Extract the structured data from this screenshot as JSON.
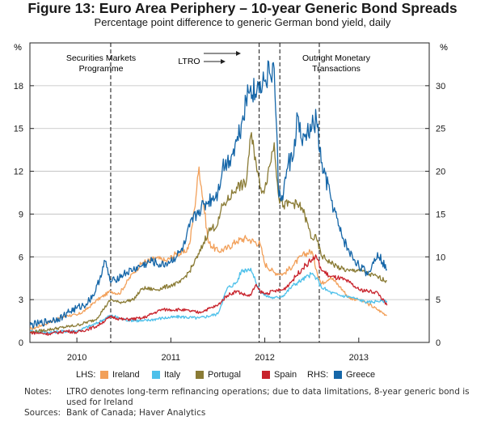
{
  "title": "Figure 13: Euro Area Periphery – 10-year Generic Bond Spreads",
  "subtitle": "Percentage point difference to generic German bond yield, daily",
  "notes_label": "Notes:",
  "notes_text": "LTRO denotes long-term refinancing operations; due to data limitations, 8-year generic bond is used for Ireland",
  "sources_label": "Sources:",
  "sources_text": "Bank of Canada; Haver Analytics",
  "chart_data": {
    "type": "line",
    "x_unit": "year (decimal)",
    "xlim": [
      2009.5,
      2013.75
    ],
    "xticks": [
      2010,
      2011,
      2012,
      2013
    ],
    "xtick_labels": [
      "2010",
      "2011",
      "2012",
      "2013"
    ],
    "ylim_left": [
      0,
      21
    ],
    "yticks_left": [
      0,
      3,
      6,
      9,
      12,
      15,
      18
    ],
    "ylim_right": [
      0,
      35
    ],
    "yticks_right": [
      0,
      5,
      10,
      15,
      20,
      25,
      30
    ],
    "ylabel_left": "%",
    "ylabel_right": "%",
    "legend_lhs_label": "LHS:",
    "legend_rhs_label": "RHS:",
    "annotations": [
      {
        "label": "Securities Markets Programme",
        "x": 2010.36,
        "text_x": 2010.11
      },
      {
        "label": "LTRO",
        "x": 2011.94,
        "x_end": 2012.16,
        "text_x": 2011.58
      },
      {
        "label": "Outright Monetary Transactions",
        "x": 2012.58,
        "text_x": 2012.91
      }
    ],
    "series": [
      {
        "name": "Ireland",
        "axis": "left",
        "color": "#f2a05a",
        "x": [
          2009.5,
          2009.7,
          2009.9,
          2010.0,
          2010.1,
          2010.2,
          2010.36,
          2010.45,
          2010.6,
          2010.7,
          2010.85,
          2010.95,
          2011.05,
          2011.15,
          2011.2,
          2011.25,
          2011.3,
          2011.4,
          2011.5,
          2011.6,
          2011.7,
          2011.8,
          2011.95,
          2012.0,
          2012.1,
          2012.2,
          2012.3,
          2012.4,
          2012.5,
          2012.55,
          2012.6,
          2012.7,
          2012.8,
          2012.9,
          2013.0,
          2013.1,
          2013.2,
          2013.3
        ],
        "y": [
          0.9,
          1.4,
          1.9,
          1.9,
          2.3,
          2.9,
          3.6,
          3.4,
          4.9,
          5.6,
          5.9,
          5.7,
          6.2,
          6.3,
          6.9,
          9.3,
          12.3,
          7.0,
          6.4,
          6.6,
          7.1,
          7.3,
          6.9,
          5.5,
          4.9,
          4.8,
          5.4,
          6.1,
          6.4,
          5.1,
          4.1,
          4.6,
          3.9,
          3.1,
          3.0,
          2.7,
          2.3,
          1.9
        ]
      },
      {
        "name": "Italy",
        "axis": "left",
        "color": "#4dc0ea",
        "x": [
          2009.5,
          2009.7,
          2009.9,
          2010.0,
          2010.2,
          2010.36,
          2010.5,
          2010.7,
          2010.9,
          2011.1,
          2011.3,
          2011.5,
          2011.6,
          2011.7,
          2011.75,
          2011.8,
          2011.85,
          2011.9,
          2011.95,
          2012.0,
          2012.1,
          2012.2,
          2012.3,
          2012.4,
          2012.5,
          2012.55,
          2012.6,
          2012.7,
          2012.8,
          2012.9,
          2013.0,
          2013.1,
          2013.2,
          2013.3
        ],
        "y": [
          0.8,
          0.7,
          0.8,
          0.8,
          1.3,
          1.9,
          1.6,
          1.5,
          1.7,
          1.8,
          1.7,
          2.0,
          3.8,
          4.2,
          5.0,
          5.1,
          5.2,
          4.3,
          3.6,
          3.3,
          3.1,
          3.3,
          4.0,
          4.4,
          4.8,
          4.5,
          3.9,
          3.5,
          3.3,
          3.2,
          3.0,
          2.8,
          2.9,
          2.9
        ]
      },
      {
        "name": "Portugal",
        "axis": "left",
        "color": "#8a7b35",
        "x": [
          2009.5,
          2009.7,
          2009.9,
          2010.0,
          2010.2,
          2010.36,
          2010.45,
          2010.6,
          2010.7,
          2010.85,
          2011.0,
          2011.1,
          2011.2,
          2011.3,
          2011.4,
          2011.5,
          2011.55,
          2011.6,
          2011.7,
          2011.8,
          2011.85,
          2011.9,
          2011.95,
          2012.0,
          2012.1,
          2012.15,
          2012.2,
          2012.3,
          2012.4,
          2012.5,
          2012.55,
          2012.6,
          2012.7,
          2012.8,
          2012.9,
          2013.0,
          2013.1,
          2013.2,
          2013.3
        ],
        "y": [
          0.7,
          0.9,
          1.1,
          1.2,
          1.6,
          3.0,
          2.8,
          3.0,
          3.8,
          3.7,
          4.0,
          4.2,
          5.0,
          6.2,
          7.8,
          8.3,
          9.6,
          9.9,
          10.9,
          11.1,
          14.5,
          13.0,
          10.8,
          10.8,
          14.0,
          10.1,
          9.6,
          9.8,
          9.4,
          7.3,
          7.3,
          6.1,
          5.6,
          5.2,
          5.0,
          5.1,
          4.8,
          4.6,
          4.3
        ]
      },
      {
        "name": "Spain",
        "axis": "left",
        "color": "#c8222b",
        "x": [
          2009.5,
          2009.7,
          2009.9,
          2010.0,
          2010.2,
          2010.36,
          2010.5,
          2010.7,
          2010.9,
          2011.1,
          2011.3,
          2011.5,
          2011.6,
          2011.7,
          2011.8,
          2011.85,
          2011.9,
          2011.95,
          2012.0,
          2012.1,
          2012.2,
          2012.3,
          2012.4,
          2012.5,
          2012.55,
          2012.6,
          2012.7,
          2012.8,
          2012.9,
          2013.0,
          2013.1,
          2013.2,
          2013.3
        ],
        "y": [
          0.7,
          0.6,
          0.8,
          0.7,
          1.1,
          1.8,
          1.6,
          1.7,
          2.3,
          2.3,
          2.1,
          2.6,
          3.3,
          3.6,
          3.3,
          3.3,
          4.0,
          3.6,
          3.4,
          3.6,
          3.7,
          4.4,
          5.2,
          5.8,
          6.0,
          5.1,
          4.6,
          4.5,
          4.2,
          3.7,
          3.6,
          3.5,
          2.6
        ]
      },
      {
        "name": "Greece",
        "axis": "right",
        "color": "#1566a8",
        "x": [
          2009.5,
          2009.6,
          2009.7,
          2009.8,
          2009.85,
          2009.9,
          2010.0,
          2010.1,
          2010.2,
          2010.3,
          2010.36,
          2010.4,
          2010.5,
          2010.6,
          2010.7,
          2010.8,
          2010.9,
          2011.0,
          2011.1,
          2011.15,
          2011.2,
          2011.3,
          2011.4,
          2011.5,
          2011.55,
          2011.6,
          2011.65,
          2011.7,
          2011.75,
          2011.8,
          2011.85,
          2011.9,
          2011.95,
          2012.0,
          2012.05,
          2012.1,
          2012.15,
          2012.2,
          2012.25,
          2012.3,
          2012.35,
          2012.4,
          2012.45,
          2012.5,
          2012.55,
          2012.6,
          2012.7,
          2012.8,
          2012.9,
          2013.0,
          2013.1,
          2013.2,
          2013.3
        ],
        "y": [
          2.0,
          2.2,
          2.5,
          2.8,
          3.0,
          3.5,
          4.0,
          4.5,
          6.0,
          9.5,
          7.0,
          7.3,
          8.0,
          8.5,
          9.0,
          9.5,
          9.0,
          9.5,
          10.5,
          11.5,
          13.5,
          15.5,
          16.5,
          17.5,
          20.5,
          21.0,
          22.0,
          23.5,
          25.5,
          28.5,
          30.0,
          29.0,
          30.5,
          30.5,
          31.5,
          32.0,
          17.0,
          17.5,
          21.0,
          21.5,
          26.5,
          23.0,
          24.5,
          25.0,
          26.0,
          21.0,
          17.0,
          13.0,
          10.5,
          9.0,
          8.0,
          10.5,
          8.5
        ]
      }
    ]
  }
}
